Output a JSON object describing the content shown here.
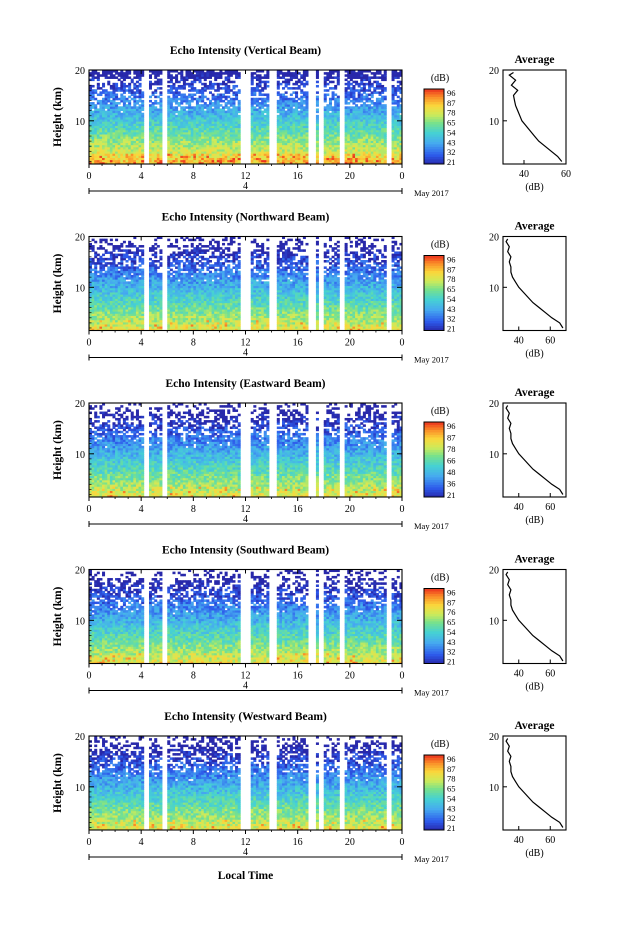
{
  "chart_data": [
    {
      "type": "heatmap",
      "title": "Echo Intensity (Vertical Beam)",
      "ylabel": "Height (km)",
      "xlabel": "",
      "x_ticks": [
        "0",
        "4",
        "8",
        "12",
        "16",
        "20",
        "0"
      ],
      "y_ticks": [
        "10",
        "20"
      ],
      "date_marker": "4",
      "date_label": "May 2017",
      "xlim": [
        0,
        24
      ],
      "ylim": [
        1.5,
        20
      ],
      "colorbar": {
        "unit": "(dB)",
        "ticks": [
          "96",
          "87",
          "78",
          "65",
          "54",
          "43",
          "32",
          "21"
        ],
        "range": [
          21,
          96
        ]
      },
      "data_gaps_local_hour": [
        [
          4.3,
          4.65
        ],
        [
          5.65,
          5.95
        ],
        [
          11.65,
          12.4
        ],
        [
          13.9,
          14.3
        ],
        [
          16.9,
          17.3
        ],
        [
          17.6,
          17.9
        ],
        [
          19.2,
          19.5
        ],
        [
          22.9,
          23.2
        ]
      ],
      "average_profile": {
        "title": "Average",
        "xlabel": "(dB)",
        "x_ticks": [
          "40",
          "60"
        ],
        "y_ticks": [
          "10",
          "20"
        ],
        "xlim": [
          30,
          60
        ],
        "ylim": [
          1.5,
          20
        ],
        "heights_km": [
          2,
          3,
          4,
          5,
          6,
          7,
          8,
          9,
          10,
          11,
          12,
          13,
          14,
          15,
          16,
          17,
          18,
          19,
          19.5
        ],
        "values_db": [
          58,
          56,
          53,
          50,
          47,
          45,
          43,
          41,
          39,
          38,
          37,
          36,
          35.5,
          35,
          37,
          34,
          36,
          33,
          35
        ]
      }
    },
    {
      "type": "heatmap",
      "title": "Echo Intensity (Northward Beam)",
      "ylabel": "Height (km)",
      "xlabel": "",
      "x_ticks": [
        "0",
        "4",
        "8",
        "12",
        "16",
        "20",
        "0"
      ],
      "y_ticks": [
        "10",
        "20"
      ],
      "date_marker": "4",
      "date_label": "May 2017",
      "xlim": [
        0,
        24
      ],
      "ylim": [
        1.5,
        20
      ],
      "colorbar": {
        "unit": "(dB)",
        "ticks": [
          "96",
          "87",
          "78",
          "65",
          "54",
          "43",
          "32",
          "21"
        ],
        "range": [
          21,
          96
        ]
      },
      "data_gaps_local_hour": [
        [
          4.3,
          4.65
        ],
        [
          5.65,
          5.95
        ],
        [
          11.65,
          12.4
        ],
        [
          13.9,
          14.3
        ],
        [
          16.9,
          17.3
        ],
        [
          17.6,
          17.9
        ],
        [
          19.2,
          19.5
        ],
        [
          22.9,
          23.2
        ]
      ],
      "average_profile": {
        "title": "Average",
        "xlabel": "(dB)",
        "x_ticks": [
          "40",
          "60"
        ],
        "y_ticks": [
          "10",
          "20"
        ],
        "xlim": [
          30,
          70
        ],
        "ylim": [
          1.5,
          20
        ],
        "heights_km": [
          2,
          3,
          4,
          5,
          6,
          7,
          8,
          9,
          10,
          11,
          12,
          13,
          14,
          15,
          16,
          17,
          18,
          19,
          19.5
        ],
        "values_db": [
          68,
          66,
          61,
          57,
          53,
          49,
          46,
          43,
          40,
          38,
          36,
          35,
          35,
          34,
          35,
          33,
          34,
          32,
          33
        ]
      }
    },
    {
      "type": "heatmap",
      "title": "Echo Intensity (Eastward Beam)",
      "ylabel": "Height (km)",
      "xlabel": "",
      "x_ticks": [
        "0",
        "4",
        "8",
        "12",
        "16",
        "20",
        "0"
      ],
      "y_ticks": [
        "10",
        "20"
      ],
      "date_marker": "4",
      "date_label": "May 2017",
      "xlim": [
        0,
        24
      ],
      "ylim": [
        1.5,
        20
      ],
      "colorbar": {
        "unit": "(dB)",
        "ticks": [
          "96",
          "87",
          "78",
          "66",
          "48",
          "36",
          "21"
        ],
        "range": [
          21,
          96
        ]
      },
      "data_gaps_local_hour": [
        [
          4.3,
          4.65
        ],
        [
          5.65,
          5.95
        ],
        [
          11.65,
          12.4
        ],
        [
          13.9,
          14.3
        ],
        [
          16.9,
          17.3
        ],
        [
          17.6,
          17.9
        ],
        [
          19.2,
          19.5
        ],
        [
          22.9,
          23.2
        ]
      ],
      "average_profile": {
        "title": "Average",
        "xlabel": "(dB)",
        "x_ticks": [
          "40",
          "60"
        ],
        "y_ticks": [
          "10",
          "20"
        ],
        "xlim": [
          30,
          70
        ],
        "ylim": [
          1.5,
          20
        ],
        "heights_km": [
          2,
          3,
          4,
          5,
          6,
          7,
          8,
          9,
          10,
          11,
          12,
          13,
          14,
          15,
          16,
          17,
          18,
          19,
          19.5
        ],
        "values_db": [
          68,
          66,
          61,
          57,
          53,
          49,
          46,
          43,
          40,
          38,
          36,
          35,
          35,
          34,
          35,
          33,
          34,
          32,
          33
        ]
      }
    },
    {
      "type": "heatmap",
      "title": "Echo Intensity (Southward Beam)",
      "ylabel": "Height (km)",
      "xlabel": "",
      "x_ticks": [
        "0",
        "4",
        "8",
        "12",
        "16",
        "20",
        "0"
      ],
      "y_ticks": [
        "10",
        "20"
      ],
      "date_marker": "4",
      "date_label": "May 2017",
      "xlim": [
        0,
        24
      ],
      "ylim": [
        1.5,
        20
      ],
      "colorbar": {
        "unit": "(dB)",
        "ticks": [
          "96",
          "87",
          "76",
          "65",
          "54",
          "43",
          "32",
          "21"
        ],
        "range": [
          21,
          96
        ]
      },
      "data_gaps_local_hour": [
        [
          4.3,
          4.65
        ],
        [
          5.65,
          5.95
        ],
        [
          11.65,
          12.4
        ],
        [
          13.9,
          14.3
        ],
        [
          16.9,
          17.3
        ],
        [
          17.6,
          17.9
        ],
        [
          19.2,
          19.5
        ],
        [
          22.9,
          23.2
        ]
      ],
      "average_profile": {
        "title": "Average",
        "xlabel": "(dB)",
        "x_ticks": [
          "40",
          "60"
        ],
        "y_ticks": [
          "10",
          "20"
        ],
        "xlim": [
          30,
          70
        ],
        "ylim": [
          1.5,
          20
        ],
        "heights_km": [
          2,
          3,
          4,
          5,
          6,
          7,
          8,
          9,
          10,
          11,
          12,
          13,
          14,
          15,
          16,
          17,
          18,
          19,
          19.5
        ],
        "values_db": [
          68,
          66,
          61,
          57,
          53,
          49,
          46,
          43,
          40,
          38,
          36,
          35,
          35,
          34,
          35,
          33,
          34,
          32,
          33
        ]
      }
    },
    {
      "type": "heatmap",
      "title": "Echo Intensity (Westward Beam)",
      "ylabel": "Height (km)",
      "xlabel": "Local Time",
      "x_ticks": [
        "0",
        "4",
        "8",
        "12",
        "16",
        "20",
        "0"
      ],
      "y_ticks": [
        "10",
        "20"
      ],
      "date_marker": "4",
      "date_label": "May 2017",
      "xlim": [
        0,
        24
      ],
      "ylim": [
        1.5,
        20
      ],
      "colorbar": {
        "unit": "(dB)",
        "ticks": [
          "96",
          "87",
          "78",
          "65",
          "54",
          "43",
          "32",
          "21"
        ],
        "range": [
          21,
          96
        ]
      },
      "data_gaps_local_hour": [
        [
          4.3,
          4.65
        ],
        [
          5.65,
          5.95
        ],
        [
          11.65,
          12.4
        ],
        [
          13.9,
          14.3
        ],
        [
          16.9,
          17.3
        ],
        [
          17.6,
          17.9
        ],
        [
          19.2,
          19.5
        ],
        [
          22.9,
          23.2
        ]
      ],
      "average_profile": {
        "title": "Average",
        "xlabel": "(dB)",
        "x_ticks": [
          "40",
          "60"
        ],
        "y_ticks": [
          "10",
          "20"
        ],
        "xlim": [
          30,
          70
        ],
        "ylim": [
          1.5,
          20
        ],
        "heights_km": [
          2,
          3,
          4,
          5,
          6,
          7,
          8,
          9,
          10,
          11,
          12,
          13,
          14,
          15,
          16,
          17,
          18,
          19,
          19.5
        ],
        "values_db": [
          68,
          66,
          61,
          57,
          53,
          49,
          46,
          43,
          40,
          38,
          36,
          35,
          35,
          34,
          35,
          33,
          34,
          32,
          33
        ]
      }
    }
  ]
}
